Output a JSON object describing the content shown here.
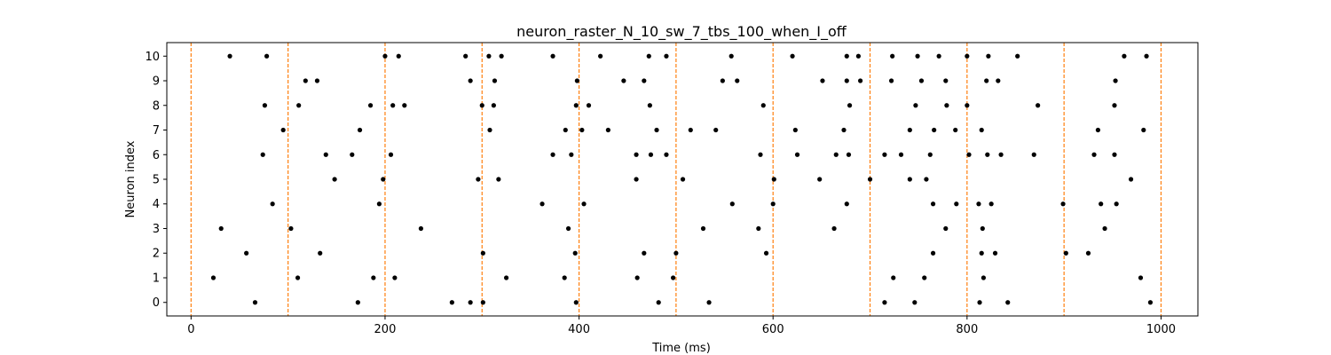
{
  "chart_data": {
    "type": "scatter",
    "title": "neuron_raster_N_10_sw_7_tbs_100_when_I_off",
    "xlabel": "Time (ms)",
    "ylabel": "Neuron index",
    "xlim": [
      -25,
      1038
    ],
    "ylim": [
      -0.55,
      10.55
    ],
    "xticks": [
      0,
      200,
      400,
      600,
      800,
      1000
    ],
    "yticks": [
      0,
      1,
      2,
      3,
      4,
      5,
      6,
      7,
      8,
      9,
      10
    ],
    "grid": false,
    "marker_color": "#000000",
    "vline_color": "#ff7f0e",
    "vlines": [
      0,
      100,
      200,
      300,
      400,
      500,
      600,
      700,
      800,
      900,
      1000
    ],
    "spikes": [
      {
        "neuron": 10,
        "times": [
          40,
          78,
          200,
          214,
          283,
          307,
          320,
          373,
          422,
          472,
          490,
          557,
          620,
          676,
          688,
          723,
          749,
          771,
          800,
          822,
          852,
          962,
          985
        ]
      },
      {
        "neuron": 9,
        "times": [
          118,
          130,
          288,
          313,
          398,
          446,
          467,
          548,
          563,
          651,
          676,
          690,
          722,
          753,
          778,
          820,
          832,
          953
        ]
      },
      {
        "neuron": 8,
        "times": [
          76,
          111,
          185,
          208,
          220,
          300,
          312,
          397,
          410,
          473,
          590,
          679,
          747,
          779,
          800,
          873,
          952
        ]
      },
      {
        "neuron": 7,
        "times": [
          95,
          174,
          308,
          386,
          403,
          430,
          480,
          515,
          541,
          623,
          673,
          741,
          766,
          788,
          815,
          935,
          982
        ]
      },
      {
        "neuron": 6,
        "times": [
          74,
          139,
          166,
          206,
          373,
          392,
          459,
          474,
          490,
          587,
          625,
          665,
          678,
          715,
          732,
          762,
          802,
          821,
          835,
          869,
          931,
          952
        ]
      },
      {
        "neuron": 5,
        "times": [
          148,
          198,
          296,
          317,
          459,
          507,
          601,
          648,
          700,
          741,
          758,
          969
        ]
      },
      {
        "neuron": 4,
        "times": [
          84,
          194,
          362,
          405,
          558,
          600,
          676,
          765,
          789,
          812,
          825,
          899,
          938,
          954
        ]
      },
      {
        "neuron": 3,
        "times": [
          31,
          103,
          237,
          389,
          528,
          585,
          663,
          778,
          816,
          942
        ]
      },
      {
        "neuron": 2,
        "times": [
          57,
          133,
          301,
          396,
          467,
          500,
          593,
          765,
          815,
          829,
          902,
          925
        ]
      },
      {
        "neuron": 1,
        "times": [
          23,
          110,
          188,
          210,
          325,
          385,
          460,
          497,
          724,
          756,
          817,
          979
        ]
      },
      {
        "neuron": 0,
        "times": [
          66,
          172,
          269,
          288,
          301,
          397,
          482,
          534,
          715,
          746,
          813,
          842,
          989
        ]
      }
    ]
  }
}
